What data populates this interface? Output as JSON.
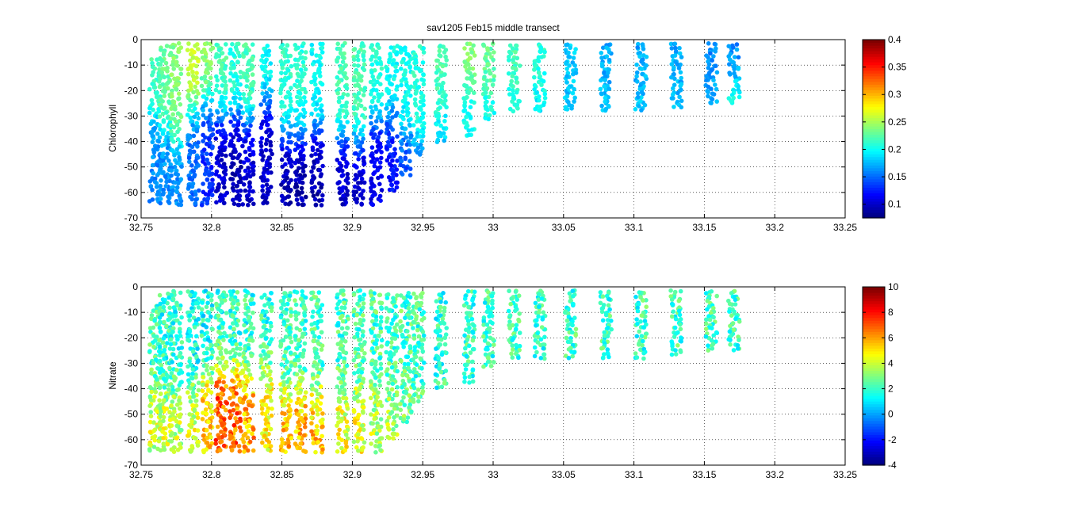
{
  "chart_data": [
    {
      "type": "heatmap",
      "title": "sav1205 Feb15 middle transect",
      "ylabel": "Chlorophyll",
      "xlim": [
        32.75,
        33.25
      ],
      "ylim": [
        -70,
        0
      ],
      "xticks": [
        "32.75",
        "32.8",
        "32.85",
        "32.9",
        "32.95",
        "33",
        "33.05",
        "33.1",
        "33.15",
        "33.2",
        "33.25"
      ],
      "yticks": [
        "0",
        "-10",
        "-20",
        "-30",
        "-40",
        "-50",
        "-60",
        "-70"
      ],
      "grid": true,
      "colormap": "jet",
      "colorbar": {
        "range": [
          0.075,
          0.4
        ],
        "ticks": [
          "0.4",
          "0.35",
          "0.3",
          "0.25",
          "0.2",
          "0.15",
          "0.1"
        ]
      },
      "casts": [
        {
          "x": 32.76,
          "ymin": -65,
          "ymax": -8,
          "surface": 0.22,
          "deep": 0.16,
          "mld": 30
        },
        {
          "x": 32.767,
          "ymin": -65,
          "ymax": -3,
          "surface": 0.23,
          "deep": 0.16,
          "mld": 35
        },
        {
          "x": 32.775,
          "ymin": -65,
          "ymax": -2,
          "surface": 0.24,
          "deep": 0.16,
          "mld": 40
        },
        {
          "x": 32.787,
          "ymin": -65,
          "ymax": -2,
          "surface": 0.26,
          "deep": 0.15,
          "mld": 28
        },
        {
          "x": 32.797,
          "ymin": -65,
          "ymax": -2,
          "surface": 0.24,
          "deep": 0.13,
          "mld": 25
        },
        {
          "x": 32.807,
          "ymin": -65,
          "ymax": -2,
          "surface": 0.22,
          "deep": 0.1,
          "mld": 30
        },
        {
          "x": 32.817,
          "ymin": -65,
          "ymax": -2,
          "surface": 0.21,
          "deep": 0.09,
          "mld": 30
        },
        {
          "x": 32.826,
          "ymin": -65,
          "ymax": -2,
          "surface": 0.22,
          "deep": 0.1,
          "mld": 32
        },
        {
          "x": 32.839,
          "ymin": -65,
          "ymax": -3,
          "surface": 0.2,
          "deep": 0.1,
          "mld": 25
        },
        {
          "x": 32.853,
          "ymin": -65,
          "ymax": -2,
          "surface": 0.21,
          "deep": 0.09,
          "mld": 38
        },
        {
          "x": 32.863,
          "ymin": -65,
          "ymax": -2,
          "surface": 0.21,
          "deep": 0.09,
          "mld": 38
        },
        {
          "x": 32.875,
          "ymin": -65,
          "ymax": -2,
          "surface": 0.2,
          "deep": 0.09,
          "mld": 36
        },
        {
          "x": 32.893,
          "ymin": -65,
          "ymax": -2,
          "surface": 0.22,
          "deep": 0.1,
          "mld": 38
        },
        {
          "x": 32.905,
          "ymin": -65,
          "ymax": -2,
          "surface": 0.22,
          "deep": 0.1,
          "mld": 40
        },
        {
          "x": 32.917,
          "ymin": -65,
          "ymax": -2,
          "surface": 0.21,
          "deep": 0.11,
          "mld": 32
        },
        {
          "x": 32.928,
          "ymin": -60,
          "ymax": -3,
          "surface": 0.2,
          "deep": 0.12,
          "mld": 30
        },
        {
          "x": 32.938,
          "ymin": -53,
          "ymax": -3,
          "surface": 0.2,
          "deep": 0.14,
          "mld": 36
        },
        {
          "x": 32.947,
          "ymin": -45,
          "ymax": -3,
          "surface": 0.21,
          "deep": 0.16,
          "mld": 38
        },
        {
          "x": 32.963,
          "ymin": -40,
          "ymax": -3,
          "surface": 0.22,
          "deep": 0.18,
          "mld": 30
        },
        {
          "x": 32.983,
          "ymin": -38,
          "ymax": -2,
          "surface": 0.24,
          "deep": 0.2,
          "mld": 20
        },
        {
          "x": 32.997,
          "ymin": -32,
          "ymax": -2,
          "surface": 0.23,
          "deep": 0.2,
          "mld": 20
        },
        {
          "x": 33.015,
          "ymin": -29,
          "ymax": -2,
          "surface": 0.22,
          "deep": 0.2,
          "mld": 20
        },
        {
          "x": 33.033,
          "ymin": -29,
          "ymax": -2,
          "surface": 0.21,
          "deep": 0.19,
          "mld": 20
        },
        {
          "x": 33.055,
          "ymin": -28,
          "ymax": -2,
          "surface": 0.18,
          "deep": 0.18,
          "mld": 20
        },
        {
          "x": 33.08,
          "ymin": -28,
          "ymax": -2,
          "surface": 0.17,
          "deep": 0.18,
          "mld": 20
        },
        {
          "x": 33.105,
          "ymin": -28,
          "ymax": -2,
          "surface": 0.17,
          "deep": 0.18,
          "mld": 20
        },
        {
          "x": 33.13,
          "ymin": -27,
          "ymax": -2,
          "surface": 0.17,
          "deep": 0.18,
          "mld": 20
        },
        {
          "x": 33.155,
          "ymin": -26,
          "ymax": -2,
          "surface": 0.16,
          "deep": 0.18,
          "mld": 20
        },
        {
          "x": 33.171,
          "ymin": -26,
          "ymax": -2,
          "surface": 0.16,
          "deep": 0.22,
          "mld": 18
        }
      ]
    },
    {
      "type": "heatmap",
      "title": "",
      "ylabel": "Nitrate",
      "xlim": [
        32.75,
        33.25
      ],
      "ylim": [
        -70,
        0
      ],
      "xticks": [
        "32.75",
        "32.8",
        "32.85",
        "32.9",
        "32.95",
        "33",
        "33.05",
        "33.1",
        "33.15",
        "33.2",
        "33.25"
      ],
      "yticks": [
        "0",
        "-10",
        "-20",
        "-30",
        "-40",
        "-50",
        "-60",
        "-70"
      ],
      "grid": true,
      "colormap": "jet",
      "colorbar": {
        "range": [
          -4,
          10
        ],
        "ticks": [
          "10",
          "8",
          "6",
          "4",
          "2",
          "0",
          "-2",
          "-4"
        ]
      },
      "casts": [
        {
          "x": 32.76,
          "ymin": -65,
          "ymax": -8,
          "surface": 2.0,
          "deep": 4.0,
          "mld": 40
        },
        {
          "x": 32.767,
          "ymin": -65,
          "ymax": -3,
          "surface": 1.8,
          "deep": 4.0,
          "mld": 40
        },
        {
          "x": 32.775,
          "ymin": -65,
          "ymax": -2,
          "surface": 1.8,
          "deep": 3.8,
          "mld": 42
        },
        {
          "x": 32.787,
          "ymin": -65,
          "ymax": -2,
          "surface": 1.5,
          "deep": 4.2,
          "mld": 40
        },
        {
          "x": 32.797,
          "ymin": -65,
          "ymax": -2,
          "surface": 1.5,
          "deep": 5.5,
          "mld": 35
        },
        {
          "x": 32.807,
          "ymin": -65,
          "ymax": -2,
          "surface": 1.8,
          "deep": 7.2,
          "mld": 32
        },
        {
          "x": 32.817,
          "ymin": -65,
          "ymax": -2,
          "surface": 1.8,
          "deep": 6.8,
          "mld": 32
        },
        {
          "x": 32.826,
          "ymin": -65,
          "ymax": -2,
          "surface": 1.8,
          "deep": 6.0,
          "mld": 34
        },
        {
          "x": 32.839,
          "ymin": -65,
          "ymax": -3,
          "surface": 1.8,
          "deep": 5.0,
          "mld": 32
        },
        {
          "x": 32.853,
          "ymin": -65,
          "ymax": -2,
          "surface": 2.0,
          "deep": 5.8,
          "mld": 40
        },
        {
          "x": 32.863,
          "ymin": -65,
          "ymax": -2,
          "surface": 2.0,
          "deep": 5.8,
          "mld": 40
        },
        {
          "x": 32.875,
          "ymin": -65,
          "ymax": -2,
          "surface": 2.0,
          "deep": 5.5,
          "mld": 40
        },
        {
          "x": 32.893,
          "ymin": -65,
          "ymax": -2,
          "surface": 2.0,
          "deep": 4.5,
          "mld": 40
        },
        {
          "x": 32.905,
          "ymin": -65,
          "ymax": -2,
          "surface": 2.2,
          "deep": 4.5,
          "mld": 40
        },
        {
          "x": 32.917,
          "ymin": -65,
          "ymax": -2,
          "surface": 2.2,
          "deep": 3.8,
          "mld": 40
        },
        {
          "x": 32.928,
          "ymin": -60,
          "ymax": -3,
          "surface": 2.2,
          "deep": 3.5,
          "mld": 40
        },
        {
          "x": 32.938,
          "ymin": -53,
          "ymax": -3,
          "surface": 2.2,
          "deep": 3.0,
          "mld": 40
        },
        {
          "x": 32.947,
          "ymin": -45,
          "ymax": -3,
          "surface": 2.0,
          "deep": 2.5,
          "mld": 40
        },
        {
          "x": 32.963,
          "ymin": -40,
          "ymax": -3,
          "surface": 1.8,
          "deep": 2.0,
          "mld": 40
        },
        {
          "x": 32.983,
          "ymin": -38,
          "ymax": -2,
          "surface": 2.0,
          "deep": 2.0,
          "mld": 30
        },
        {
          "x": 32.997,
          "ymin": -32,
          "ymax": -2,
          "surface": 2.0,
          "deep": 2.0,
          "mld": 30
        },
        {
          "x": 33.015,
          "ymin": -29,
          "ymax": -2,
          "surface": 2.0,
          "deep": 2.0,
          "mld": 30
        },
        {
          "x": 33.033,
          "ymin": -29,
          "ymax": -2,
          "surface": 2.0,
          "deep": 2.0,
          "mld": 30
        },
        {
          "x": 33.055,
          "ymin": -28,
          "ymax": -2,
          "surface": 2.0,
          "deep": 2.0,
          "mld": 30
        },
        {
          "x": 33.08,
          "ymin": -28,
          "ymax": -2,
          "surface": 2.0,
          "deep": 2.0,
          "mld": 30
        },
        {
          "x": 33.105,
          "ymin": -28,
          "ymax": -2,
          "surface": 2.0,
          "deep": 2.0,
          "mld": 30
        },
        {
          "x": 33.13,
          "ymin": -27,
          "ymax": -2,
          "surface": 2.0,
          "deep": 2.0,
          "mld": 30
        },
        {
          "x": 33.155,
          "ymin": -26,
          "ymax": -2,
          "surface": 2.0,
          "deep": 2.0,
          "mld": 30
        },
        {
          "x": 33.171,
          "ymin": -26,
          "ymax": -2,
          "surface": 2.0,
          "deep": 2.0,
          "mld": 30
        }
      ]
    }
  ]
}
